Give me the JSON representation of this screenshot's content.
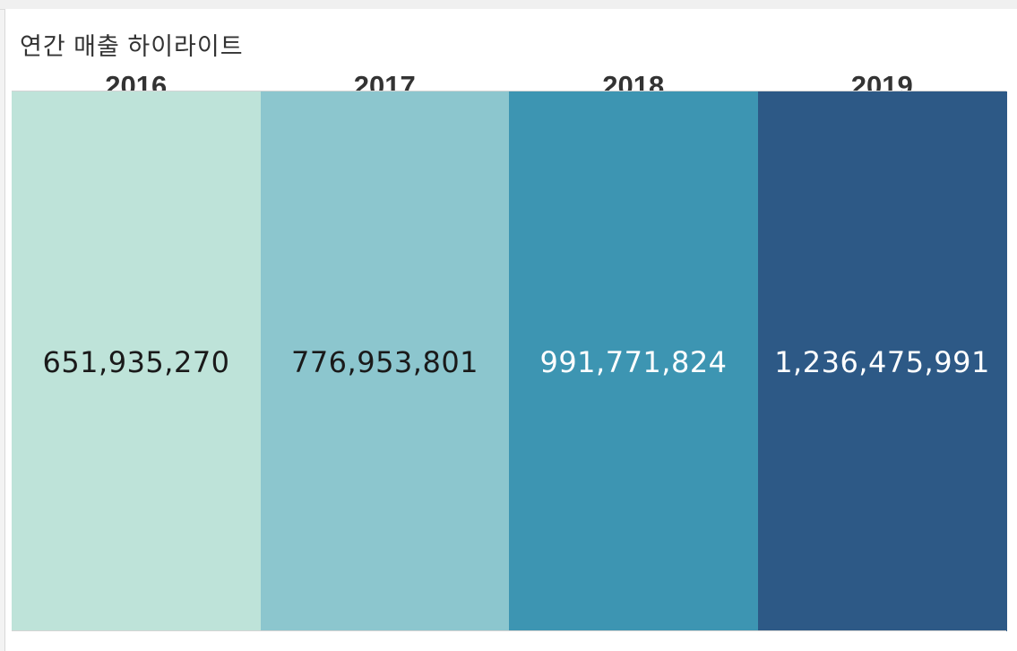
{
  "title": "연간 매출 하이라이트",
  "chart_data": {
    "type": "heatmap",
    "title": "연간 매출 하이라이트",
    "categories": [
      "2016",
      "2017",
      "2018",
      "2019"
    ],
    "values": [
      651935270,
      776953801,
      991771824,
      1236475991
    ],
    "labels": [
      "651,935,270",
      "776,953,801",
      "991,771,824",
      "1,236,475,991"
    ],
    "colors": [
      "#bee3d9",
      "#8cc6ce",
      "#3d95b2",
      "#2d5986"
    ],
    "text_colors": [
      "#1a1a1a",
      "#1a1a1a",
      "#ffffff",
      "#ffffff"
    ],
    "grid": false,
    "legend": "none"
  }
}
